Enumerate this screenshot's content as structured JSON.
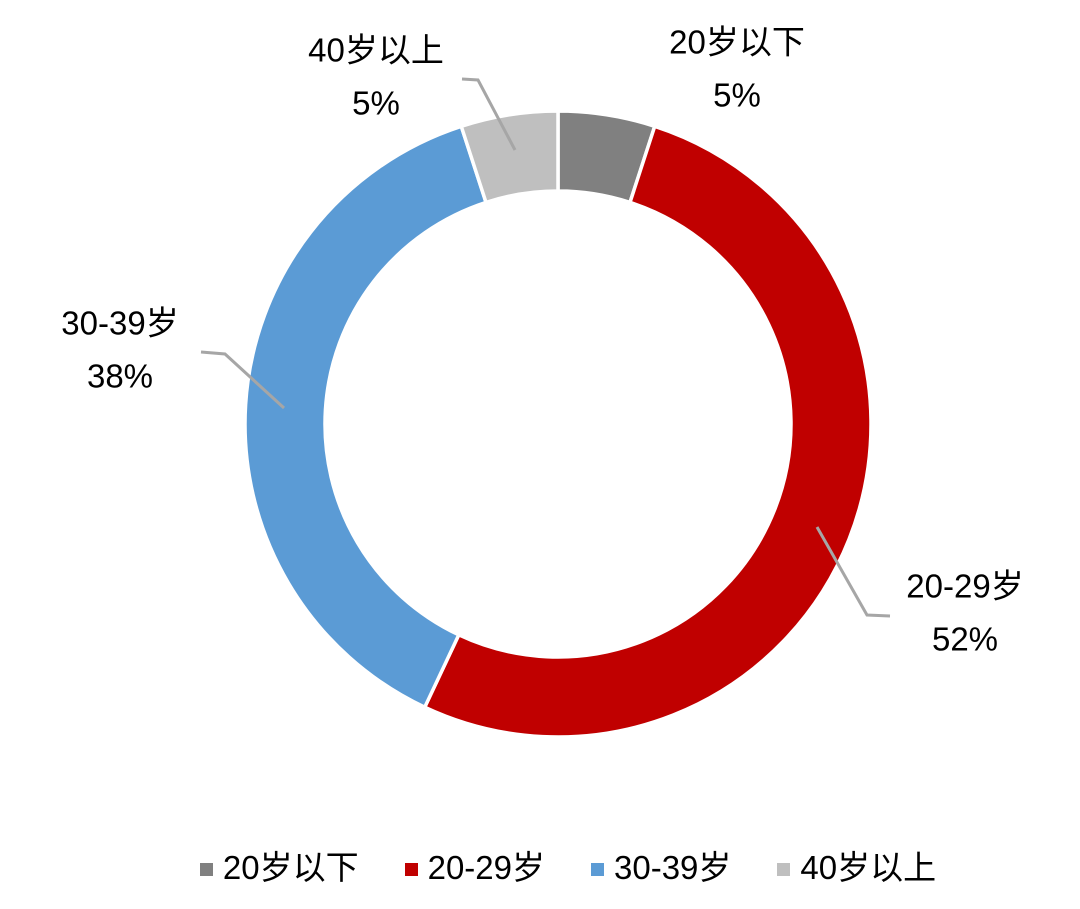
{
  "chart_data": {
    "type": "pie",
    "subtype": "donut",
    "title": "",
    "categories": [
      "20岁以下",
      "20-29岁",
      "30-39岁",
      "40岁以上"
    ],
    "values": [
      5,
      52,
      38,
      5
    ],
    "slices": [
      {
        "label": "20岁以下",
        "value": 5,
        "pct_label": "5%",
        "color": "#808080"
      },
      {
        "label": "20-29岁",
        "value": 52,
        "pct_label": "52%",
        "color": "#C00000"
      },
      {
        "label": "30-39岁",
        "value": 38,
        "pct_label": "38%",
        "color": "#5B9BD5"
      },
      {
        "label": "40岁以上",
        "value": 5,
        "pct_label": "5%",
        "color": "#BFBFBF"
      }
    ],
    "start_angle_deg": 0,
    "direction": "clockwise",
    "donut_hole_ratio": 0.745,
    "slice_border_color": "#FFFFFF",
    "leader_line_color": "#A6A6A6",
    "label_text_color": "#000000",
    "background": "#FFFFFF",
    "legend_position": "bottom"
  }
}
